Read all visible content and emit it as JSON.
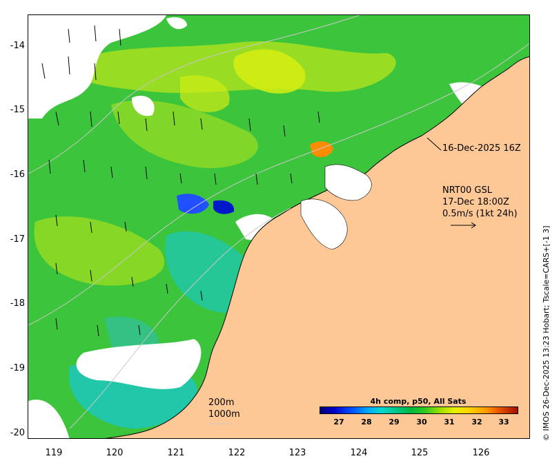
{
  "map": {
    "y_axis_labels": [
      "-14",
      "-15",
      "-16",
      "-17",
      "-18",
      "-19",
      "-20"
    ],
    "x_axis_labels": [
      "119",
      "120",
      "121",
      "122",
      "123",
      "124",
      "125",
      "126"
    ],
    "annotations": {
      "timestamp": "16-Dec-2025 16Z",
      "current_source": "NRT00 GSL",
      "current_time": "17-Dec 18:00Z",
      "vector_scale": "0.5m/s (1kt 24h)",
      "contour_200": "200m",
      "contour_1000": "1000m"
    },
    "colorbar": {
      "title": "4h comp, p50, All Sats",
      "ticks": [
        "27",
        "28",
        "29",
        "30",
        "31",
        "32",
        "33"
      ]
    },
    "credit": "© IMOS 26-Dec-2025 13:23 Hobart; Tscale=CARS+[-1 3]",
    "colors": {
      "land": "#fdc896",
      "sst_green": "#3cc43c",
      "sst_yellow": "#c8ec14",
      "sst_cyan": "#1ec8b4",
      "sst_blue": "#2050ff",
      "sst_orange": "#ff8c00",
      "cloud": "#ffffff"
    }
  }
}
